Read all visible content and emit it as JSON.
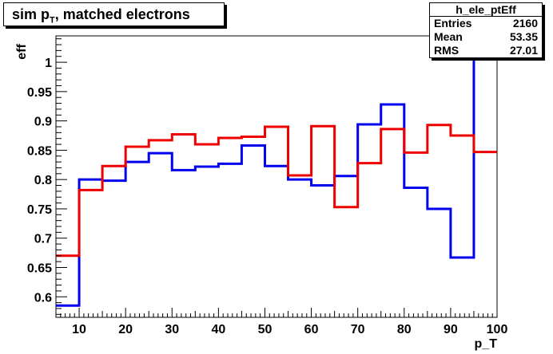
{
  "title": {
    "main": "sim p",
    "sub": "T",
    "rest": ", matched electrons"
  },
  "stats": {
    "name": "h_ele_ptEff",
    "rows": [
      {
        "label": "Entries",
        "value": "2160"
      },
      {
        "label": "Mean",
        "value": "53.35"
      },
      {
        "label": "RMS",
        "value": "27.01"
      }
    ]
  },
  "chart_data": {
    "type": "line",
    "style": "step-histogram",
    "xlabel": "p_T",
    "ylabel": "eff",
    "xlim": [
      5,
      100
    ],
    "ylim": [
      0.565,
      1.045
    ],
    "x_ticks": [
      10,
      20,
      30,
      40,
      50,
      60,
      70,
      80,
      90,
      100
    ],
    "y_ticks": [
      0.6,
      0.65,
      0.7,
      0.75,
      0.8,
      0.85,
      0.9,
      0.95,
      1
    ],
    "y_tick_labels": [
      "0.6",
      "0.65",
      "0.7",
      "0.75",
      "0.8",
      "0.85",
      "0.9",
      "0.95",
      "1"
    ],
    "bin_edges": [
      5,
      10,
      15,
      20,
      25,
      30,
      35,
      40,
      45,
      50,
      55,
      60,
      65,
      70,
      75,
      80,
      85,
      90,
      95,
      100
    ],
    "grid": false,
    "series": [
      {
        "color": "#0000ee",
        "values": [
          0.585,
          0.8,
          0.798,
          0.83,
          0.845,
          0.816,
          0.822,
          0.827,
          0.858,
          0.823,
          0.8,
          0.79,
          0.806,
          0.894,
          0.928,
          0.786,
          0.75,
          0.667,
          1.045
        ]
      },
      {
        "color": "#ee0000",
        "values": [
          0.67,
          0.782,
          0.823,
          0.856,
          0.867,
          0.877,
          0.86,
          0.871,
          0.873,
          0.89,
          0.807,
          0.891,
          0.753,
          0.828,
          0.886,
          0.846,
          0.893,
          0.875,
          0.847
        ]
      }
    ]
  }
}
